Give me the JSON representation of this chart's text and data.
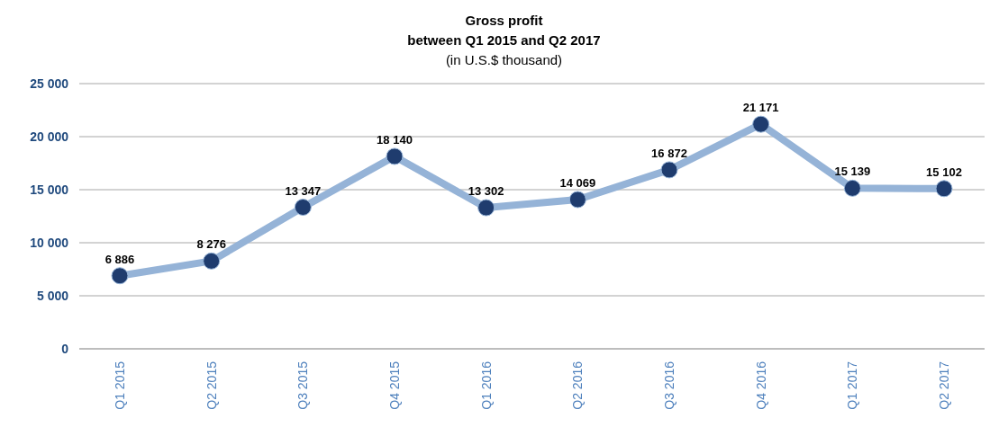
{
  "chart_data": {
    "type": "line",
    "title": "Gross profit",
    "subtitle": "between Q1 2015 and Q2 2017\n(in U.S.$ thousand)",
    "categories": [
      "Q1 2015",
      "Q2 2015",
      "Q3 2015",
      "Q4 2015",
      "Q1 2016",
      "Q2 2016",
      "Q3 2016",
      "Q4 2016",
      "Q1 2017",
      "Q2 2017"
    ],
    "series": [
      {
        "color": "#95b3d7",
        "values": [
          6886,
          8276,
          13347,
          18140,
          13302,
          14069,
          16872,
          21171,
          15139,
          15102
        ],
        "value_labels": [
          "6 886",
          "8 276",
          "13 347",
          "18 140",
          "13 302",
          "14 069",
          "16 872",
          "21 171",
          "15 139",
          "15 102"
        ]
      }
    ],
    "colors": [
      "#1f3c6e",
      "#1f3c6e",
      "#1f3c6e",
      "#1f3c6e",
      "#1f3c6e",
      "#1f3c6e",
      "#1f3c6e",
      "#1f3c6e",
      "#1f3c6e",
      "#1f3c6e"
    ],
    "ylim": [
      0,
      25000
    ],
    "yticks": [
      {
        "value": 0,
        "label": "0"
      },
      {
        "value": 5000,
        "label": "5 000"
      },
      {
        "value": 10000,
        "label": "10 000"
      },
      {
        "value": 15000,
        "label": "15 000"
      },
      {
        "value": 20000,
        "label": "20 000"
      },
      {
        "value": 25000,
        "label": "25 000"
      }
    ],
    "grid": "y",
    "marker": "circle",
    "line_style": "solid"
  }
}
